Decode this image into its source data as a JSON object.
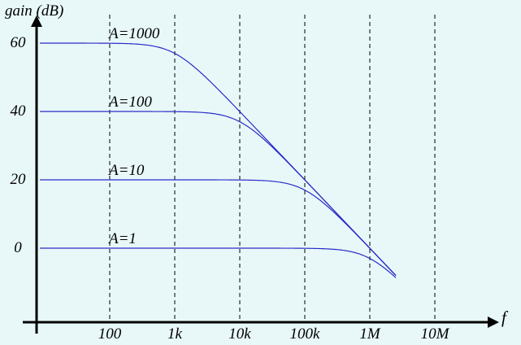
{
  "chart_data": {
    "type": "line",
    "title": "",
    "ylabel": "gain (dB)",
    "xlabel": "f",
    "x_scale": "log",
    "x_ticks": [
      {
        "value": 100,
        "label": "100"
      },
      {
        "value": 1000,
        "label": "1k"
      },
      {
        "value": 10000,
        "label": "10k"
      },
      {
        "value": 100000,
        "label": "100k"
      },
      {
        "value": 1000000,
        "label": "1M"
      },
      {
        "value": 10000000,
        "label": "10M"
      }
    ],
    "y_ticks": [
      {
        "value": 60,
        "label": "60"
      },
      {
        "value": 40,
        "label": "40"
      },
      {
        "value": 20,
        "label": "20"
      },
      {
        "value": 0,
        "label": "0"
      }
    ],
    "xlim": [
      10,
      100000000
    ],
    "ylim": [
      -21,
      69
    ],
    "grid": "vertical-dashed",
    "series": [
      {
        "name": "A=1000",
        "dc_gain_db": 60,
        "corner_hz": 1000
      },
      {
        "name": "A=100",
        "dc_gain_db": 40,
        "corner_hz": 10000
      },
      {
        "name": "A=10",
        "dc_gain_db": 20,
        "corner_hz": 100000
      },
      {
        "name": "A=1",
        "dc_gain_db": 0,
        "corner_hz": 1000000
      }
    ],
    "colors": {
      "background": "#e8f8f8",
      "curve": "#2b2bc8",
      "axis": "#000000"
    }
  }
}
